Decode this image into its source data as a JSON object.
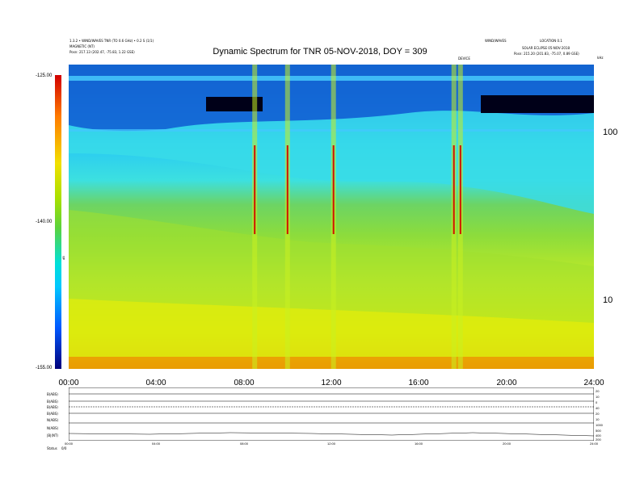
{
  "header": {
    "left_line1": "1.3.2 • WIND/WAVES TNR (TO 0.6 GHz) • 0.2 S (1/1)",
    "left_line2": "MAGNETIC (NT)",
    "left_line3": "Posn:   217.13 (202.47, -75.83, 1.22 GSE)",
    "right_top": "WIND/WAVES",
    "right_line1": "LOCATION 0.1",
    "right_line2": "SOLAR ECLIPSE 05-NOV-2018",
    "right_line3": "Posn:   215.20 (201.83, -75.07, 0.89 GSE)",
    "event_label": "DEVICE",
    "corner_label": "kHz"
  },
  "chart_data": {
    "type": "heatmap",
    "title": "Dynamic Spectrum for TNR 05-NOV-2018, DOY = 309",
    "x_ticks": [
      "00:00",
      "04:00",
      "08:00",
      "12:00",
      "16:00",
      "20:00",
      "24:00"
    ],
    "xlim_hours": [
      0,
      24
    ],
    "y_ticks_right": [
      "100",
      "10"
    ],
    "y_scale": "log",
    "colorbar": {
      "ticks": [
        "-125.00",
        "-140.00",
        "-155.00"
      ],
      "label": "dB",
      "range": [
        -155,
        -125
      ],
      "colors": [
        "#d10000",
        "#ff7a00",
        "#f2e000",
        "#a8e000",
        "#5ad23c",
        "#00e0d8",
        "#00c8ff",
        "#0058ff",
        "#00007a"
      ]
    },
    "bursts_hours": [
      8.5,
      10.0,
      12.1,
      17.6,
      17.9
    ]
  },
  "strip": {
    "left_labels": [
      "B(ABS)",
      "B(ABS)",
      "B(ABS)",
      "B(ABS)",
      "N(ABS)",
      "N(ABS)",
      "|B|(NT)"
    ],
    "right_values": [
      "20",
      "10",
      "0",
      "40",
      "20",
      "10",
      "1000",
      "500",
      "400",
      "200"
    ],
    "bottom_ticks": [
      "00:00",
      "04:00",
      "08:00",
      "12:00",
      "16:00",
      "20:00",
      "24:00"
    ],
    "status_label": "Status",
    "status_value": "0/0"
  }
}
